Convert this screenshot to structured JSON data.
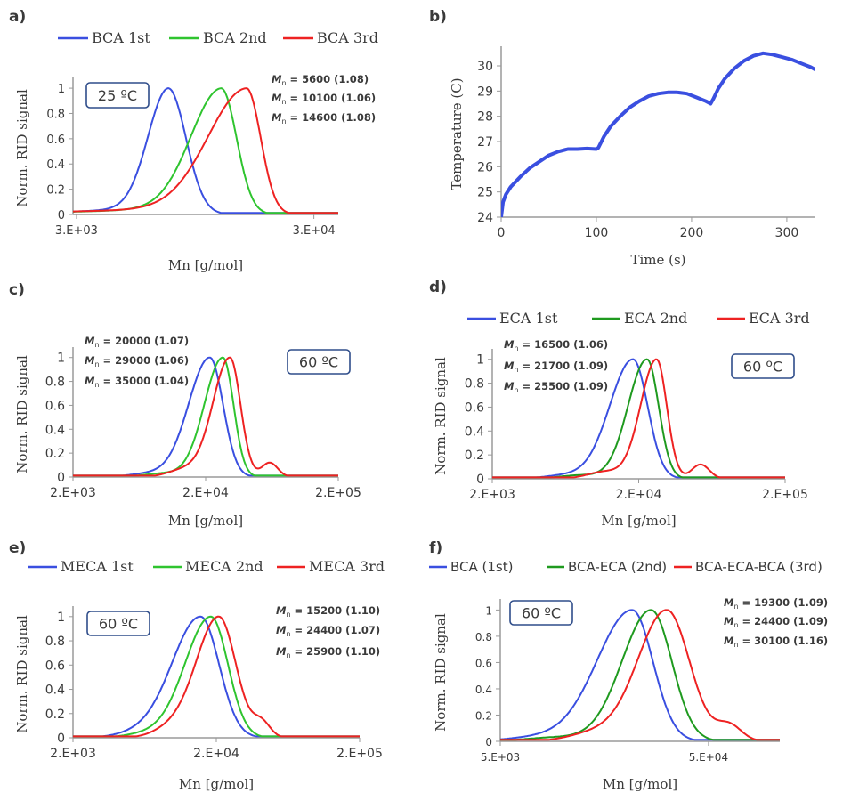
{
  "colors": {
    "blue": "#3a4fe0",
    "green": "#2fc42f",
    "darkgreen": "#1f9a1f",
    "red": "#ee2222",
    "axis": "#9a9a9a",
    "box": "#2f4d8a"
  },
  "chart_data": [
    {
      "panel": "a)",
      "type": "line",
      "xlabel": "Mn [g/mol]",
      "ylabel": "Norm. RID signal",
      "x_scale": "log",
      "xlim": [
        2900,
        38000
      ],
      "ylim": [
        0,
        1.05
      ],
      "x_ticks": [
        {
          "value": 3000,
          "label": "3.E+03"
        },
        {
          "value": 30000,
          "label": "3.E+04"
        }
      ],
      "y_ticks": [
        0,
        0.2,
        0.4,
        0.6,
        0.8,
        1
      ],
      "legend": "top",
      "temperature": "25 ºC",
      "mn_symbol": "M",
      "mn_sub": "n",
      "annotations": [
        " = 5600   (1.08)",
        " = 10100 (1.06)",
        " = 14600 (1.08)"
      ],
      "series": [
        {
          "name": "BCA 1st",
          "color": "#3a4fe0",
          "shape": "skewleft",
          "peak": 7300,
          "wl": 0.2,
          "wr": 0.075
        },
        {
          "name": "BCA 2nd",
          "color": "#2fc42f",
          "shape": "skewleft",
          "peak": 12200,
          "wl": 0.3,
          "wr": 0.065
        },
        {
          "name": "BCA 3rd",
          "color": "#ee2222",
          "shape": "skewleft",
          "peak": 15600,
          "wl": 0.38,
          "wr": 0.06
        }
      ]
    },
    {
      "panel": "b)",
      "type": "line",
      "xlabel": "Time (s)",
      "ylabel": "Temperature (C)",
      "x_scale": "linear",
      "xlim": [
        0,
        330
      ],
      "ylim": [
        24,
        30.6
      ],
      "x_ticks": [
        {
          "value": 0,
          "label": "0"
        },
        {
          "value": 100,
          "label": "100"
        },
        {
          "value": 200,
          "label": "200"
        },
        {
          "value": 300,
          "label": "300"
        }
      ],
      "y_ticks": [
        24,
        25,
        26,
        27,
        28,
        29,
        30
      ],
      "series": [
        {
          "name": "",
          "color": "#3a4fe0",
          "points": [
            [
              0,
              24
            ],
            [
              2,
              24.6
            ],
            [
              5,
              24.9
            ],
            [
              10,
              25.2
            ],
            [
              20,
              25.6
            ],
            [
              30,
              25.95
            ],
            [
              40,
              26.2
            ],
            [
              50,
              26.45
            ],
            [
              60,
              26.6
            ],
            [
              70,
              26.7
            ],
            [
              80,
              26.7
            ],
            [
              90,
              26.72
            ],
            [
              100,
              26.7
            ],
            [
              102,
              26.75
            ],
            [
              108,
              27.2
            ],
            [
              115,
              27.6
            ],
            [
              125,
              28.0
            ],
            [
              135,
              28.35
            ],
            [
              145,
              28.6
            ],
            [
              155,
              28.8
            ],
            [
              165,
              28.9
            ],
            [
              175,
              28.95
            ],
            [
              185,
              28.95
            ],
            [
              195,
              28.9
            ],
            [
              205,
              28.75
            ],
            [
              215,
              28.6
            ],
            [
              220,
              28.5
            ],
            [
              223,
              28.7
            ],
            [
              228,
              29.1
            ],
            [
              235,
              29.5
            ],
            [
              245,
              29.9
            ],
            [
              255,
              30.2
            ],
            [
              265,
              30.4
            ],
            [
              275,
              30.5
            ],
            [
              285,
              30.45
            ],
            [
              295,
              30.35
            ],
            [
              305,
              30.25
            ],
            [
              315,
              30.1
            ],
            [
              325,
              29.95
            ],
            [
              330,
              29.85
            ]
          ]
        }
      ]
    },
    {
      "panel": "c)",
      "type": "line",
      "xlabel": "Mn [g/mol]",
      "ylabel": "Norm. RID signal",
      "x_scale": "log",
      "xlim": [
        2000,
        200000
      ],
      "ylim": [
        0,
        1.05
      ],
      "x_ticks": [
        {
          "value": 2000,
          "label": "2.E+03"
        },
        {
          "value": 20000,
          "label": "2.E+04"
        },
        {
          "value": 200000,
          "label": "2.E+05"
        }
      ],
      "y_ticks": [
        0,
        0.2,
        0.4,
        0.6,
        0.8,
        1
      ],
      "temperature": "60 ºC",
      "mn_symbol": "M",
      "mn_sub": "n",
      "annotations": [
        " = 20000 (1.07)",
        " = 29000 (1.06)",
        " = 35000 (1.04)"
      ],
      "series": [
        {
          "name": "",
          "color": "#3a4fe0",
          "shape": "gauss",
          "peak": 21500,
          "wl": 0.16,
          "wr": 0.1
        },
        {
          "name": "",
          "color": "#2fc42f",
          "shape": "gauss",
          "peak": 27000,
          "wl": 0.14,
          "wr": 0.08
        },
        {
          "name": "",
          "color": "#ee2222",
          "shape": "shoulder",
          "peak": 30500,
          "wl": 0.13,
          "wr": 0.08
        }
      ]
    },
    {
      "panel": "d)",
      "type": "line",
      "xlabel": "Mn [g/mol]",
      "ylabel": "Norm. RID signal",
      "x_scale": "log",
      "xlim": [
        2000,
        200000
      ],
      "ylim": [
        0,
        1.05
      ],
      "x_ticks": [
        {
          "value": 2000,
          "label": "2.E+03"
        },
        {
          "value": 20000,
          "label": "2.E+04"
        },
        {
          "value": 200000,
          "label": "2.E+05"
        }
      ],
      "y_ticks": [
        0,
        0.2,
        0.4,
        0.6,
        0.8,
        1
      ],
      "legend": "top",
      "temperature": "60 ºC",
      "mn_symbol": "M",
      "mn_sub": "n",
      "annotations": [
        " = 16500 (1.06)",
        " = 21700 (1.09)",
        " = 25500 (1.09)"
      ],
      "series": [
        {
          "name": "ECA 1st",
          "color": "#3a4fe0",
          "shape": "gauss",
          "peak": 18300,
          "wl": 0.16,
          "wr": 0.1
        },
        {
          "name": "ECA 2nd",
          "color": "#1f9a1f",
          "shape": "gauss",
          "peak": 22800,
          "wl": 0.13,
          "wr": 0.08
        },
        {
          "name": "ECA 3rd",
          "color": "#ee2222",
          "shape": "shoulder",
          "peak": 26500,
          "wl": 0.11,
          "wr": 0.07
        }
      ]
    },
    {
      "panel": "e)",
      "type": "line",
      "xlabel": "Mn [g/mol]",
      "ylabel": "Norm. RID signal",
      "x_scale": "log",
      "xlim": [
        2000,
        200000
      ],
      "ylim": [
        0,
        1.05
      ],
      "x_ticks": [
        {
          "value": 2000,
          "label": "2.E+03"
        },
        {
          "value": 20000,
          "label": "2.E+04"
        },
        {
          "value": 200000,
          "label": "2.E+05"
        }
      ],
      "y_ticks": [
        0,
        0.2,
        0.4,
        0.6,
        0.8,
        1
      ],
      "legend": "top",
      "temperature": "60 ºC",
      "mn_symbol": "M",
      "mn_sub": "n",
      "annotations": [
        " = 15200 (1.10)",
        " = 24400 (1.07)",
        " = 25900 (1.10)"
      ],
      "series": [
        {
          "name": "MECA 1st",
          "color": "#3a4fe0",
          "shape": "gauss",
          "peak": 15500,
          "wl": 0.2,
          "wr": 0.13
        },
        {
          "name": "MECA 2nd",
          "color": "#2fc42f",
          "shape": "gauss",
          "peak": 18300,
          "wl": 0.18,
          "wr": 0.12
        },
        {
          "name": "MECA 3rd",
          "color": "#ee2222",
          "shape": "shoulder",
          "peak": 20800,
          "wl": 0.16,
          "wr": 0.12
        }
      ]
    },
    {
      "panel": "f)",
      "type": "line",
      "xlabel": "Mn [g/mol]",
      "ylabel": "Norm. RID signal",
      "x_scale": "log",
      "xlim": [
        5000,
        110000
      ],
      "ylim": [
        0,
        1.05
      ],
      "x_ticks": [
        {
          "value": 5000,
          "label": "5.E+03"
        },
        {
          "value": 50000,
          "label": "5.E+04"
        }
      ],
      "y_ticks": [
        0,
        0.2,
        0.4,
        0.6,
        0.8,
        1
      ],
      "legend": "top",
      "temperature": "60 ºC",
      "mn_symbol": "M",
      "mn_sub": "n",
      "annotations": [
        " = 19300 (1.09)",
        " = 24400 (1.09)",
        " = 30100 (1.16)"
      ],
      "series": [
        {
          "name": "BCA (1st)",
          "color": "#3a4fe0",
          "shape": "gauss",
          "peak": 21500,
          "wl": 0.17,
          "wr": 0.1
        },
        {
          "name": "BCA-ECA (2nd)",
          "color": "#1f9a1f",
          "shape": "gauss",
          "peak": 26500,
          "wl": 0.14,
          "wr": 0.1
        },
        {
          "name": "BCA-ECA-BCA (3rd)",
          "color": "#ee2222",
          "shape": "shoulder",
          "peak": 31500,
          "wl": 0.14,
          "wr": 0.11
        }
      ]
    }
  ]
}
